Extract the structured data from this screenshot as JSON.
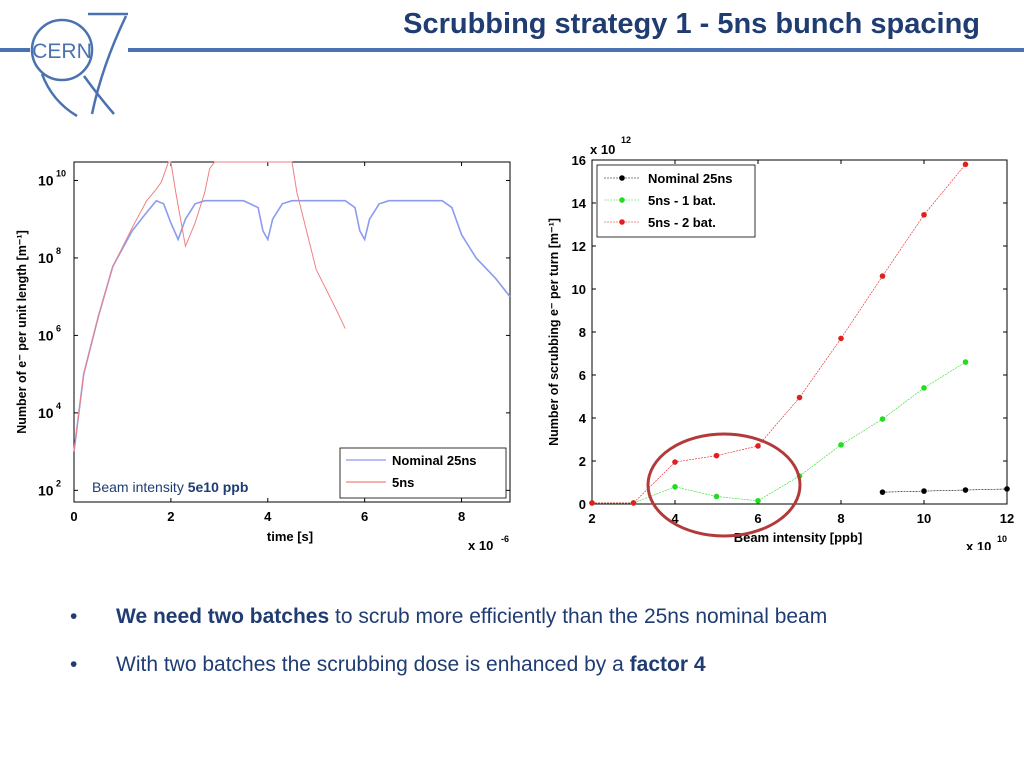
{
  "header": {
    "title": "Scrubbing strategy 1 - 5ns bunch spacing",
    "logo_text": "CERN",
    "accent": "#4a72b0",
    "title_color": "#1f3c73"
  },
  "bullets": [
    {
      "bold": "We need two batches",
      "rest": " to scrub more efficiently than the 25ns nominal beam"
    },
    {
      "pre": "With two batches the scrubbing dose is enhanced by a ",
      "bold": "factor 4"
    }
  ],
  "bullet_char": "•",
  "chart_data": [
    {
      "type": "line",
      "xlabel": "time [s]",
      "xscale_label": "x 10",
      "xscale_exp": "-6",
      "ylabel": "Number of e⁻ per unit length [m⁻¹]",
      "yscale": "log",
      "xlim": [
        0,
        9e-06
      ],
      "ylim": [
        50,
        30000000000
      ],
      "x_ticks": [
        "0",
        "2",
        "4",
        "6",
        "8"
      ],
      "y_ticks": [
        {
          "base": "10",
          "exp": "2"
        },
        {
          "base": "10",
          "exp": "4"
        },
        {
          "base": "10",
          "exp": "6"
        },
        {
          "base": "10",
          "exp": "8"
        },
        {
          "base": "10",
          "exp": "10"
        }
      ],
      "annotation": {
        "pre": "Beam intensity ",
        "bold": "5e10 ppb"
      },
      "legend_position": "bottom-right",
      "series": [
        {
          "name": "Nominal 25ns",
          "color": "#8c9bf0",
          "x": [
            0,
            2e-07,
            5e-07,
            8e-07,
            1.2e-06,
            1.5e-06,
            1.7e-06,
            1.85e-06,
            2e-06,
            2.15e-06,
            2.3e-06,
            2.5e-06,
            2.7e-06,
            3e-06,
            3.5e-06,
            3.8e-06,
            3.9e-06,
            4e-06,
            4.1e-06,
            4.3e-06,
            4.5e-06,
            5e-06,
            5.6e-06,
            5.8e-06,
            5.9e-06,
            6e-06,
            6.1e-06,
            6.3e-06,
            6.5e-06,
            7e-06,
            7.6e-06,
            7.8e-06,
            8e-06,
            8.3e-06,
            8.7e-06,
            9e-06
          ],
          "y": [
            1000,
            100000,
            3000000,
            60000000,
            500000000,
            1500000000,
            3000000000,
            2500000000,
            800000000,
            300000000,
            1000000000,
            2500000000,
            3000000000,
            3000000000,
            3000000000,
            2000000000,
            500000000,
            300000000,
            1000000000,
            2500000000,
            3000000000,
            3000000000,
            3000000000,
            2000000000,
            500000000,
            300000000,
            1000000000,
            2500000000,
            3000000000,
            3000000000,
            3000000000,
            2000000000,
            400000000,
            100000000,
            30000000,
            10000000
          ]
        },
        {
          "name": "5ns",
          "color": "#f08080",
          "x": [
            0,
            2e-07,
            5e-07,
            8e-07,
            1.2e-06,
            1.5e-06,
            1.7e-06,
            1.8e-06,
            1.9e-06,
            1.95e-06,
            2e-06,
            2.1e-06,
            2.3e-06,
            2.5e-06,
            2.7e-06,
            2.8e-06,
            2.9e-06,
            3.2e-06,
            3.5e-06,
            4e-06,
            4.4e-06,
            4.5e-06,
            4.6e-06,
            5e-06,
            5.4e-06,
            5.6e-06
          ],
          "y": [
            1000,
            100000,
            3000000,
            60000000,
            600000000,
            3000000000,
            6000000000,
            9000000000,
            20000000000,
            30000000000,
            30000000000,
            5000000000,
            200000000,
            800000000,
            5000000000,
            20000000000,
            30000000000,
            30000000000,
            30000000000,
            30000000000,
            30000000000,
            30000000000,
            5000000000,
            50000000,
            5000000,
            1500000
          ]
        }
      ]
    },
    {
      "type": "scatter",
      "xlabel": "Beam intensity [ppb]",
      "xscale_label": "x 10",
      "xscale_exp": "10",
      "ylabel": "Number of scrubbing e⁻ per turn [m⁻¹]",
      "yscale_label": "x 10",
      "yscale_exp": "12",
      "xlim": [
        2,
        12
      ],
      "ylim": [
        0,
        16
      ],
      "x_ticks": [
        "2",
        "4",
        "6",
        "8",
        "10",
        "12"
      ],
      "y_ticks": [
        "0",
        "2",
        "4",
        "6",
        "8",
        "10",
        "12",
        "14",
        "16"
      ],
      "legend_position": "top-left",
      "highlight_color": "#b23a3a",
      "series": [
        {
          "name": "Nominal 25ns",
          "color": "#000000",
          "x": [
            9,
            10,
            11,
            12
          ],
          "y": [
            0.55,
            0.6,
            0.65,
            0.7
          ]
        },
        {
          "name": "5ns - 1 bat.",
          "color": "#22dd22",
          "x": [
            2,
            3,
            4,
            5,
            6,
            7,
            8,
            9,
            10,
            11
          ],
          "y": [
            0.05,
            0.05,
            0.8,
            0.35,
            0.15,
            1.3,
            2.75,
            3.95,
            5.4,
            6.6
          ]
        },
        {
          "name": "5ns - 2 bat.",
          "color": "#e02020",
          "x": [
            2,
            3,
            4,
            5,
            6,
            7,
            8,
            9,
            10,
            11
          ],
          "y": [
            0.05,
            0.05,
            1.95,
            2.25,
            2.7,
            4.95,
            7.7,
            10.6,
            13.45,
            15.8
          ]
        }
      ]
    }
  ]
}
